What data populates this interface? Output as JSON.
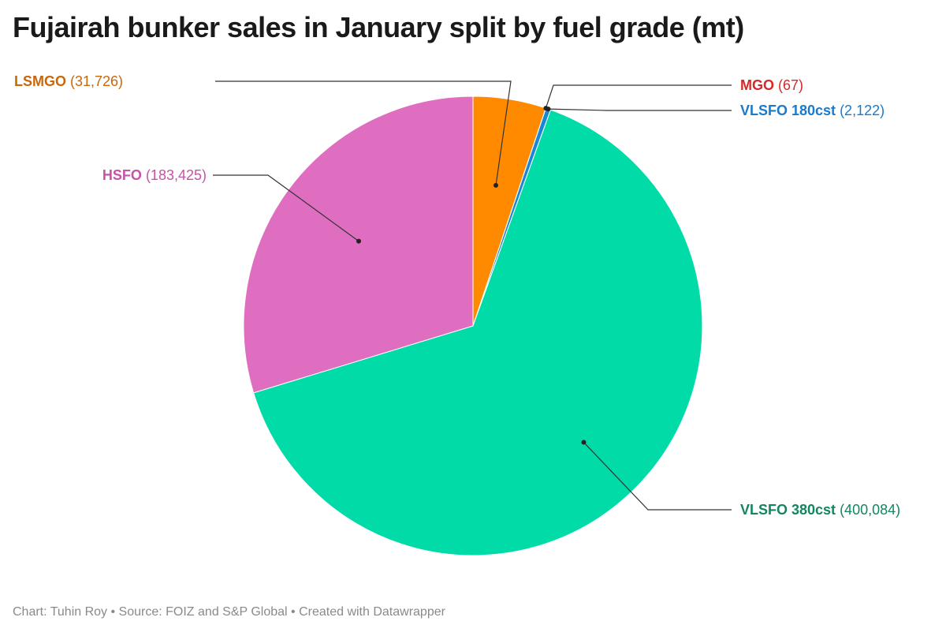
{
  "title": "Fujairah bunker sales in January split by fuel grade (mt)",
  "footer": "Chart: Tuhin Roy • Source: FOIZ and S&P Global • Created with Datawrapper",
  "chart_data": {
    "type": "pie",
    "title": "Fujairah bunker sales in January split by fuel grade (mt)",
    "unit": "mt",
    "slices": [
      {
        "name": "LSMGO",
        "value": 31726,
        "display": "(31,726)",
        "color": "#ff8a00",
        "label_color": "#c9680b"
      },
      {
        "name": "MGO",
        "value": 67,
        "display": "(67)",
        "color": "#d62828",
        "label_color": "#d62828"
      },
      {
        "name": "VLSFO 180cst",
        "value": 2122,
        "display": "(2,122)",
        "color": "#1a86d6",
        "label_color": "#1a7acb"
      },
      {
        "name": "VLSFO 380cst",
        "value": 400084,
        "display": "(400,084)",
        "color": "#00dba8",
        "label_color": "#13865f"
      },
      {
        "name": "HSFO",
        "value": 183425,
        "display": "(183,425)",
        "color": "#df6ec0",
        "label_color": "#c553a6"
      }
    ],
    "start": "12 o'clock",
    "direction": "clockwise",
    "legend": "none (direct labels with leader lines)"
  }
}
